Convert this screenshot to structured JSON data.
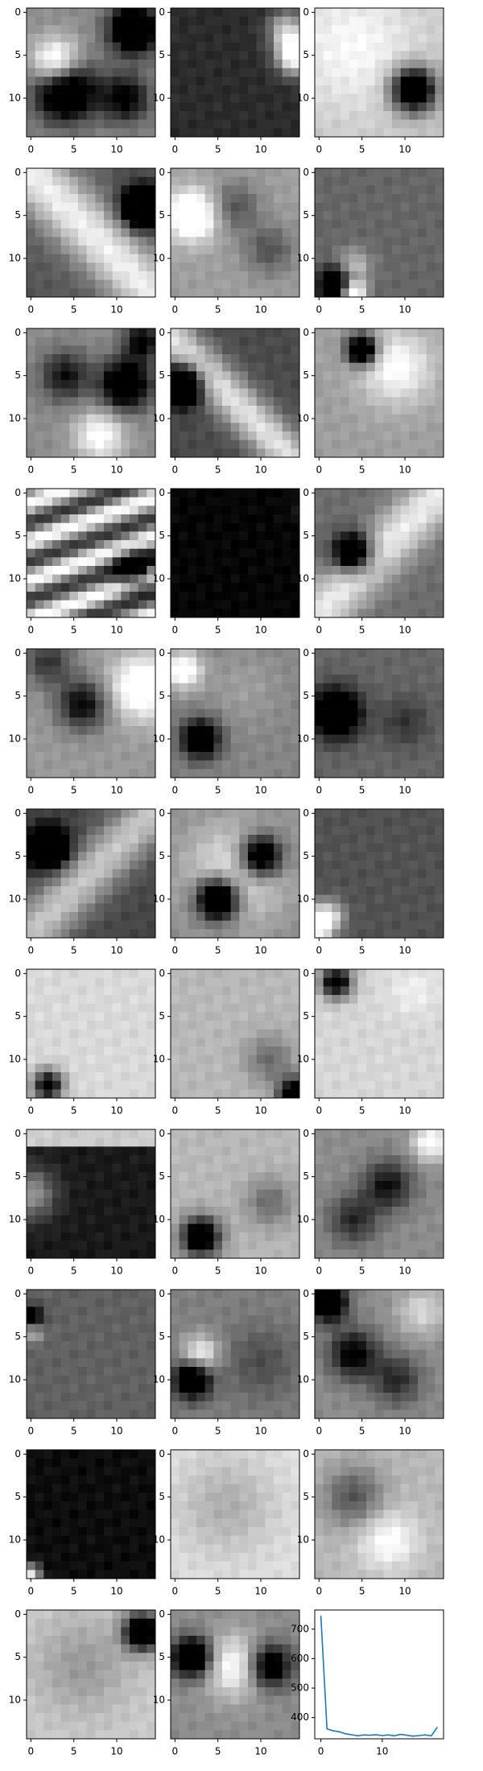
{
  "figure": {
    "background": "#ffffff",
    "axis_color": "#000000",
    "line_color": "#1f77b4",
    "colormap": "gray"
  },
  "chart_data": [
    {
      "type": "heatmap",
      "panel": "fmap-01",
      "shape": [
        15,
        15
      ],
      "colormap": "gray",
      "xticks": [
        0,
        5,
        10
      ],
      "yticks": [
        0,
        5,
        10
      ],
      "style": "blob",
      "centers": [
        [
          9,
          4,
          -1,
          2.5
        ],
        [
          6,
          3,
          0.8,
          2
        ],
        [
          2,
          12,
          -1,
          2
        ],
        [
          10,
          11,
          -0.6,
          2
        ]
      ],
      "base": 0.55
    },
    {
      "type": "heatmap",
      "panel": "fmap-02",
      "shape": [
        15,
        15
      ],
      "colormap": "gray",
      "xticks": [
        0,
        5,
        10
      ],
      "yticks": [
        0,
        5,
        10
      ],
      "style": "blob",
      "centers": [
        [
          5,
          14,
          1,
          1.5
        ],
        [
          2,
          13,
          0.6,
          1.5
        ]
      ],
      "base": 0.17
    },
    {
      "type": "heatmap",
      "panel": "fmap-03",
      "shape": [
        15,
        15
      ],
      "colormap": "gray",
      "xticks": [
        0,
        5,
        10
      ],
      "yticks": [
        0,
        5,
        10
      ],
      "style": "blob",
      "centers": [
        [
          9,
          11,
          -1.2,
          1.8
        ],
        [
          4,
          4,
          0.2,
          5
        ]
      ],
      "base": 0.78
    },
    {
      "type": "heatmap",
      "panel": "fmap-04",
      "shape": [
        15,
        15
      ],
      "colormap": "gray",
      "xticks": [
        0,
        5,
        10
      ],
      "yticks": [
        0,
        5,
        10
      ],
      "style": "diag",
      "dir": 1,
      "offset": 0,
      "width": 3.5,
      "contrast": 0.6,
      "centers": [
        [
          4,
          13,
          -1.2,
          1.6
        ]
      ],
      "base": 0.55
    },
    {
      "type": "heatmap",
      "panel": "fmap-05",
      "shape": [
        15,
        15
      ],
      "colormap": "gray",
      "xticks": [
        0,
        5,
        10
      ],
      "yticks": [
        0,
        5,
        10
      ],
      "style": "blob",
      "centers": [
        [
          5,
          2,
          0.7,
          2
        ],
        [
          4,
          7,
          -0.3,
          2
        ],
        [
          9,
          11,
          -0.3,
          2
        ]
      ],
      "base": 0.62
    },
    {
      "type": "heatmap",
      "panel": "fmap-06",
      "shape": [
        15,
        15
      ],
      "colormap": "gray",
      "xticks": [
        0,
        5,
        10
      ],
      "yticks": [
        0,
        5,
        10
      ],
      "style": "blob",
      "centers": [
        [
          13,
          2,
          -0.8,
          1.4
        ],
        [
          14,
          4,
          0.9,
          1
        ],
        [
          11,
          4,
          0.4,
          1.4
        ]
      ],
      "base": 0.4
    },
    {
      "type": "heatmap",
      "panel": "fmap-07",
      "shape": [
        15,
        15
      ],
      "colormap": "gray",
      "xticks": [
        0,
        5,
        10
      ],
      "yticks": [
        0,
        5,
        10
      ],
      "style": "blob",
      "centers": [
        [
          6,
          11,
          -0.9,
          2
        ],
        [
          5,
          4,
          -0.5,
          2
        ],
        [
          12,
          8,
          0.5,
          2
        ],
        [
          1,
          13,
          -0.6,
          1.5
        ]
      ],
      "base": 0.55
    },
    {
      "type": "heatmap",
      "panel": "fmap-08",
      "shape": [
        15,
        15
      ],
      "colormap": "gray",
      "xticks": [
        0,
        5,
        10
      ],
      "yticks": [
        0,
        5,
        10
      ],
      "style": "diag",
      "dir": 1,
      "offset": -1,
      "width": 2.5,
      "contrast": 0.6,
      "centers": [
        [
          6,
          1,
          -1,
          1.6
        ]
      ],
      "base": 0.5
    },
    {
      "type": "heatmap",
      "panel": "fmap-09",
      "shape": [
        15,
        15
      ],
      "colormap": "gray",
      "xticks": [
        0,
        5,
        10
      ],
      "yticks": [
        0,
        5,
        10
      ],
      "style": "blob",
      "centers": [
        [
          2,
          5,
          -1.2,
          1.2
        ],
        [
          4,
          9,
          0.4,
          3
        ]
      ],
      "base": 0.62
    },
    {
      "type": "heatmap",
      "panel": "fmap-10",
      "shape": [
        15,
        15
      ],
      "colormap": "gray",
      "xticks": [
        0,
        5,
        10
      ],
      "yticks": [
        0,
        5,
        10
      ],
      "style": "stripes",
      "period": 4.5,
      "contrast": 0.4,
      "centers": [
        [
          9,
          12,
          -0.7,
          1.6
        ]
      ],
      "base": 0.6
    },
    {
      "type": "heatmap",
      "panel": "fmap-11",
      "shape": [
        15,
        15
      ],
      "colormap": "gray",
      "xticks": [
        0,
        5,
        10
      ],
      "yticks": [
        0,
        5,
        10
      ],
      "style": "flat",
      "centers": [
        [
          2,
          14,
          0.05,
          1
        ]
      ],
      "base": 0.02
    },
    {
      "type": "heatmap",
      "panel": "fmap-12",
      "shape": [
        15,
        15
      ],
      "colormap": "gray",
      "xticks": [
        0,
        5,
        10
      ],
      "yticks": [
        0,
        5,
        10
      ],
      "style": "diag",
      "dir": -1,
      "offset": 0,
      "width": 3,
      "contrast": 0.5,
      "centers": [
        [
          7,
          4,
          -1,
          1.6
        ]
      ],
      "base": 0.6
    },
    {
      "type": "heatmap",
      "panel": "fmap-13",
      "shape": [
        15,
        15
      ],
      "colormap": "gray",
      "xticks": [
        0,
        5,
        10
      ],
      "yticks": [
        0,
        5,
        10
      ],
      "style": "blob",
      "centers": [
        [
          6,
          6,
          -0.6,
          2
        ],
        [
          4,
          13,
          0.6,
          2.5
        ],
        [
          1,
          2,
          -0.4,
          2
        ]
      ],
      "base": 0.6
    },
    {
      "type": "heatmap",
      "panel": "fmap-14",
      "shape": [
        15,
        15
      ],
      "colormap": "gray",
      "xticks": [
        0,
        5,
        10
      ],
      "yticks": [
        0,
        5,
        10
      ],
      "style": "blob",
      "centers": [
        [
          10,
          3,
          -0.8,
          1.6
        ],
        [
          2,
          1,
          0.6,
          1.5
        ],
        [
          4,
          8,
          0.1,
          3
        ]
      ],
      "base": 0.52
    },
    {
      "type": "heatmap",
      "panel": "fmap-15",
      "shape": [
        15,
        15
      ],
      "colormap": "gray",
      "xticks": [
        0,
        5,
        10
      ],
      "yticks": [
        0,
        5,
        10
      ],
      "style": "blob",
      "centers": [
        [
          7,
          2,
          -0.8,
          2
        ],
        [
          8,
          10,
          -0.2,
          2
        ]
      ],
      "base": 0.4
    },
    {
      "type": "heatmap",
      "panel": "fmap-16",
      "shape": [
        15,
        15
      ],
      "colormap": "gray",
      "xticks": [
        0,
        5,
        10
      ],
      "yticks": [
        0,
        5,
        10
      ],
      "style": "diag",
      "dir": -1,
      "offset": 0,
      "width": 3,
      "contrast": 0.5,
      "centers": [
        [
          4,
          2,
          -1,
          1.6
        ]
      ],
      "base": 0.45
    },
    {
      "type": "heatmap",
      "panel": "fmap-17",
      "shape": [
        15,
        15
      ],
      "colormap": "gray",
      "xticks": [
        0,
        5,
        10
      ],
      "yticks": [
        0,
        5,
        10
      ],
      "style": "blob",
      "centers": [
        [
          10,
          5,
          -1.2,
          1.7
        ],
        [
          5,
          10,
          -1,
          1.7
        ],
        [
          7,
          7,
          0.4,
          4
        ]
      ],
      "base": 0.55
    },
    {
      "type": "heatmap",
      "panel": "fmap-18",
      "shape": [
        15,
        15
      ],
      "colormap": "gray",
      "xticks": [
        0,
        5,
        10
      ],
      "yticks": [
        0,
        5,
        10
      ],
      "style": "blob",
      "centers": [
        [
          12,
          1,
          0.6,
          1.3
        ],
        [
          13,
          0,
          0.9,
          1
        ]
      ],
      "base": 0.32
    },
    {
      "type": "heatmap",
      "panel": "fmap-19",
      "shape": [
        15,
        15
      ],
      "colormap": "gray",
      "xticks": [
        0,
        5,
        10
      ],
      "yticks": [
        0,
        5,
        10
      ],
      "style": "blob",
      "centers": [
        [
          13,
          2,
          -1,
          1.2
        ]
      ],
      "base": 0.85
    },
    {
      "type": "heatmap",
      "panel": "fmap-20",
      "shape": [
        15,
        15
      ],
      "colormap": "gray",
      "xticks": [
        0,
        5,
        10
      ],
      "yticks": [
        0,
        5,
        10
      ],
      "style": "blob",
      "centers": [
        [
          14,
          14,
          -1,
          1.3
        ],
        [
          10,
          11,
          -0.3,
          2
        ]
      ],
      "base": 0.72
    },
    {
      "type": "heatmap",
      "panel": "fmap-21",
      "shape": [
        15,
        15
      ],
      "colormap": "gray",
      "xticks": [
        0,
        5,
        10
      ],
      "yticks": [
        0,
        5,
        10
      ],
      "style": "blob",
      "centers": [
        [
          1,
          2,
          -1,
          1.3
        ],
        [
          2,
          11,
          0.1,
          2
        ]
      ],
      "base": 0.84
    },
    {
      "type": "heatmap",
      "panel": "fmap-22",
      "shape": [
        15,
        15
      ],
      "colormap": "gray",
      "xticks": [
        0,
        5,
        10
      ],
      "yticks": [
        0,
        5,
        10
      ],
      "style": "band",
      "rows": [
        2,
        14
      ],
      "contrast": 0.7,
      "centers": [
        [
          7,
          0,
          0.5,
          2
        ]
      ],
      "base": 0.1
    },
    {
      "type": "heatmap",
      "panel": "fmap-23",
      "shape": [
        15,
        15
      ],
      "colormap": "gray",
      "xticks": [
        0,
        5,
        10
      ],
      "yticks": [
        0,
        5,
        10
      ],
      "style": "blob",
      "centers": [
        [
          12,
          3,
          -1,
          1.6
        ],
        [
          8,
          11,
          -0.3,
          2
        ]
      ],
      "base": 0.72
    },
    {
      "type": "heatmap",
      "panel": "fmap-24",
      "shape": [
        15,
        15
      ],
      "colormap": "gray",
      "xticks": [
        0,
        5,
        10
      ],
      "yticks": [
        0,
        5,
        10
      ],
      "style": "blob",
      "centers": [
        [
          6,
          8,
          -0.5,
          2
        ],
        [
          10,
          4,
          -0.4,
          2
        ],
        [
          1,
          13,
          0.5,
          1.5
        ]
      ],
      "base": 0.55
    },
    {
      "type": "heatmap",
      "panel": "fmap-25",
      "shape": [
        15,
        15
      ],
      "colormap": "gray",
      "xticks": [
        0,
        5,
        10
      ],
      "yticks": [
        0,
        5,
        10
      ],
      "style": "blob",
      "centers": [
        [
          3,
          0,
          -0.8,
          1
        ],
        [
          4,
          0,
          0.6,
          1
        ]
      ],
      "base": 0.38
    },
    {
      "type": "heatmap",
      "panel": "fmap-26",
      "shape": [
        15,
        15
      ],
      "colormap": "gray",
      "xticks": [
        0,
        5,
        10
      ],
      "yticks": [
        0,
        5,
        10
      ],
      "style": "blob",
      "centers": [
        [
          10,
          2,
          -0.9,
          1.5
        ],
        [
          7,
          3,
          0.5,
          1.5
        ],
        [
          8,
          10,
          -0.2,
          3
        ]
      ],
      "base": 0.5
    },
    {
      "type": "heatmap",
      "panel": "fmap-27",
      "shape": [
        15,
        15
      ],
      "colormap": "gray",
      "xticks": [
        0,
        5,
        10
      ],
      "yticks": [
        0,
        5,
        10
      ],
      "style": "blob",
      "centers": [
        [
          1,
          1,
          -1,
          1.5
        ],
        [
          7,
          4,
          -0.6,
          2
        ],
        [
          10,
          9,
          -0.4,
          2
        ],
        [
          2,
          12,
          0.3,
          2
        ]
      ],
      "base": 0.55
    },
    {
      "type": "heatmap",
      "panel": "fmap-28",
      "shape": [
        15,
        15
      ],
      "colormap": "gray",
      "xticks": [
        0,
        5,
        10
      ],
      "yticks": [
        0,
        5,
        10
      ],
      "style": "blob",
      "centers": [
        [
          14,
          0,
          0.9,
          0.8
        ]
      ],
      "base": 0.05
    },
    {
      "type": "heatmap",
      "panel": "fmap-29",
      "shape": [
        15,
        15
      ],
      "colormap": "gray",
      "xticks": [
        0,
        5,
        10
      ],
      "yticks": [
        0,
        5,
        10
      ],
      "style": "blob",
      "centers": [
        [
          6,
          6,
          -0.2,
          4
        ]
      ],
      "base": 0.88
    },
    {
      "type": "heatmap",
      "panel": "fmap-30",
      "shape": [
        15,
        15
      ],
      "colormap": "gray",
      "xticks": [
        0,
        5,
        10
      ],
      "yticks": [
        0,
        5,
        10
      ],
      "style": "blob",
      "centers": [
        [
          5,
          4,
          -0.4,
          2.5
        ],
        [
          10,
          8,
          0.3,
          2.5
        ]
      ],
      "base": 0.72
    },
    {
      "type": "heatmap",
      "panel": "fmap-31",
      "shape": [
        15,
        15
      ],
      "colormap": "gray",
      "xticks": [
        0,
        5,
        10
      ],
      "yticks": [
        0,
        5,
        10
      ],
      "style": "blob",
      "centers": [
        [
          2,
          13,
          -1.2,
          1.5
        ],
        [
          6,
          6,
          -0.2,
          4
        ]
      ],
      "base": 0.8
    },
    {
      "type": "heatmap",
      "panel": "fmap-32",
      "shape": [
        15,
        15
      ],
      "colormap": "gray",
      "xticks": [
        0,
        5,
        10
      ],
      "yticks": [
        0,
        5,
        10
      ],
      "style": "blob",
      "centers": [
        [
          5,
          2,
          -1,
          1.6
        ],
        [
          6,
          11,
          -0.8,
          1.8
        ],
        [
          6,
          7,
          0.5,
          2.5
        ]
      ],
      "base": 0.55
    },
    {
      "type": "line",
      "panel": "loss-curve",
      "x": [
        0,
        1,
        2,
        3,
        4,
        5,
        6,
        7,
        8,
        9,
        10,
        11,
        12,
        13,
        14,
        15,
        16,
        17,
        18,
        19
      ],
      "series": [
        {
          "values": [
            745,
            362,
            355,
            352,
            345,
            342,
            338,
            341,
            340,
            342,
            339,
            341,
            338,
            343,
            340,
            337,
            339,
            341,
            338,
            368
          ]
        }
      ],
      "xlim": [
        -1,
        20
      ],
      "ylim": [
        328,
        765
      ],
      "xticks": [
        0,
        10
      ],
      "yticks": [
        400,
        500,
        600,
        700
      ]
    }
  ]
}
